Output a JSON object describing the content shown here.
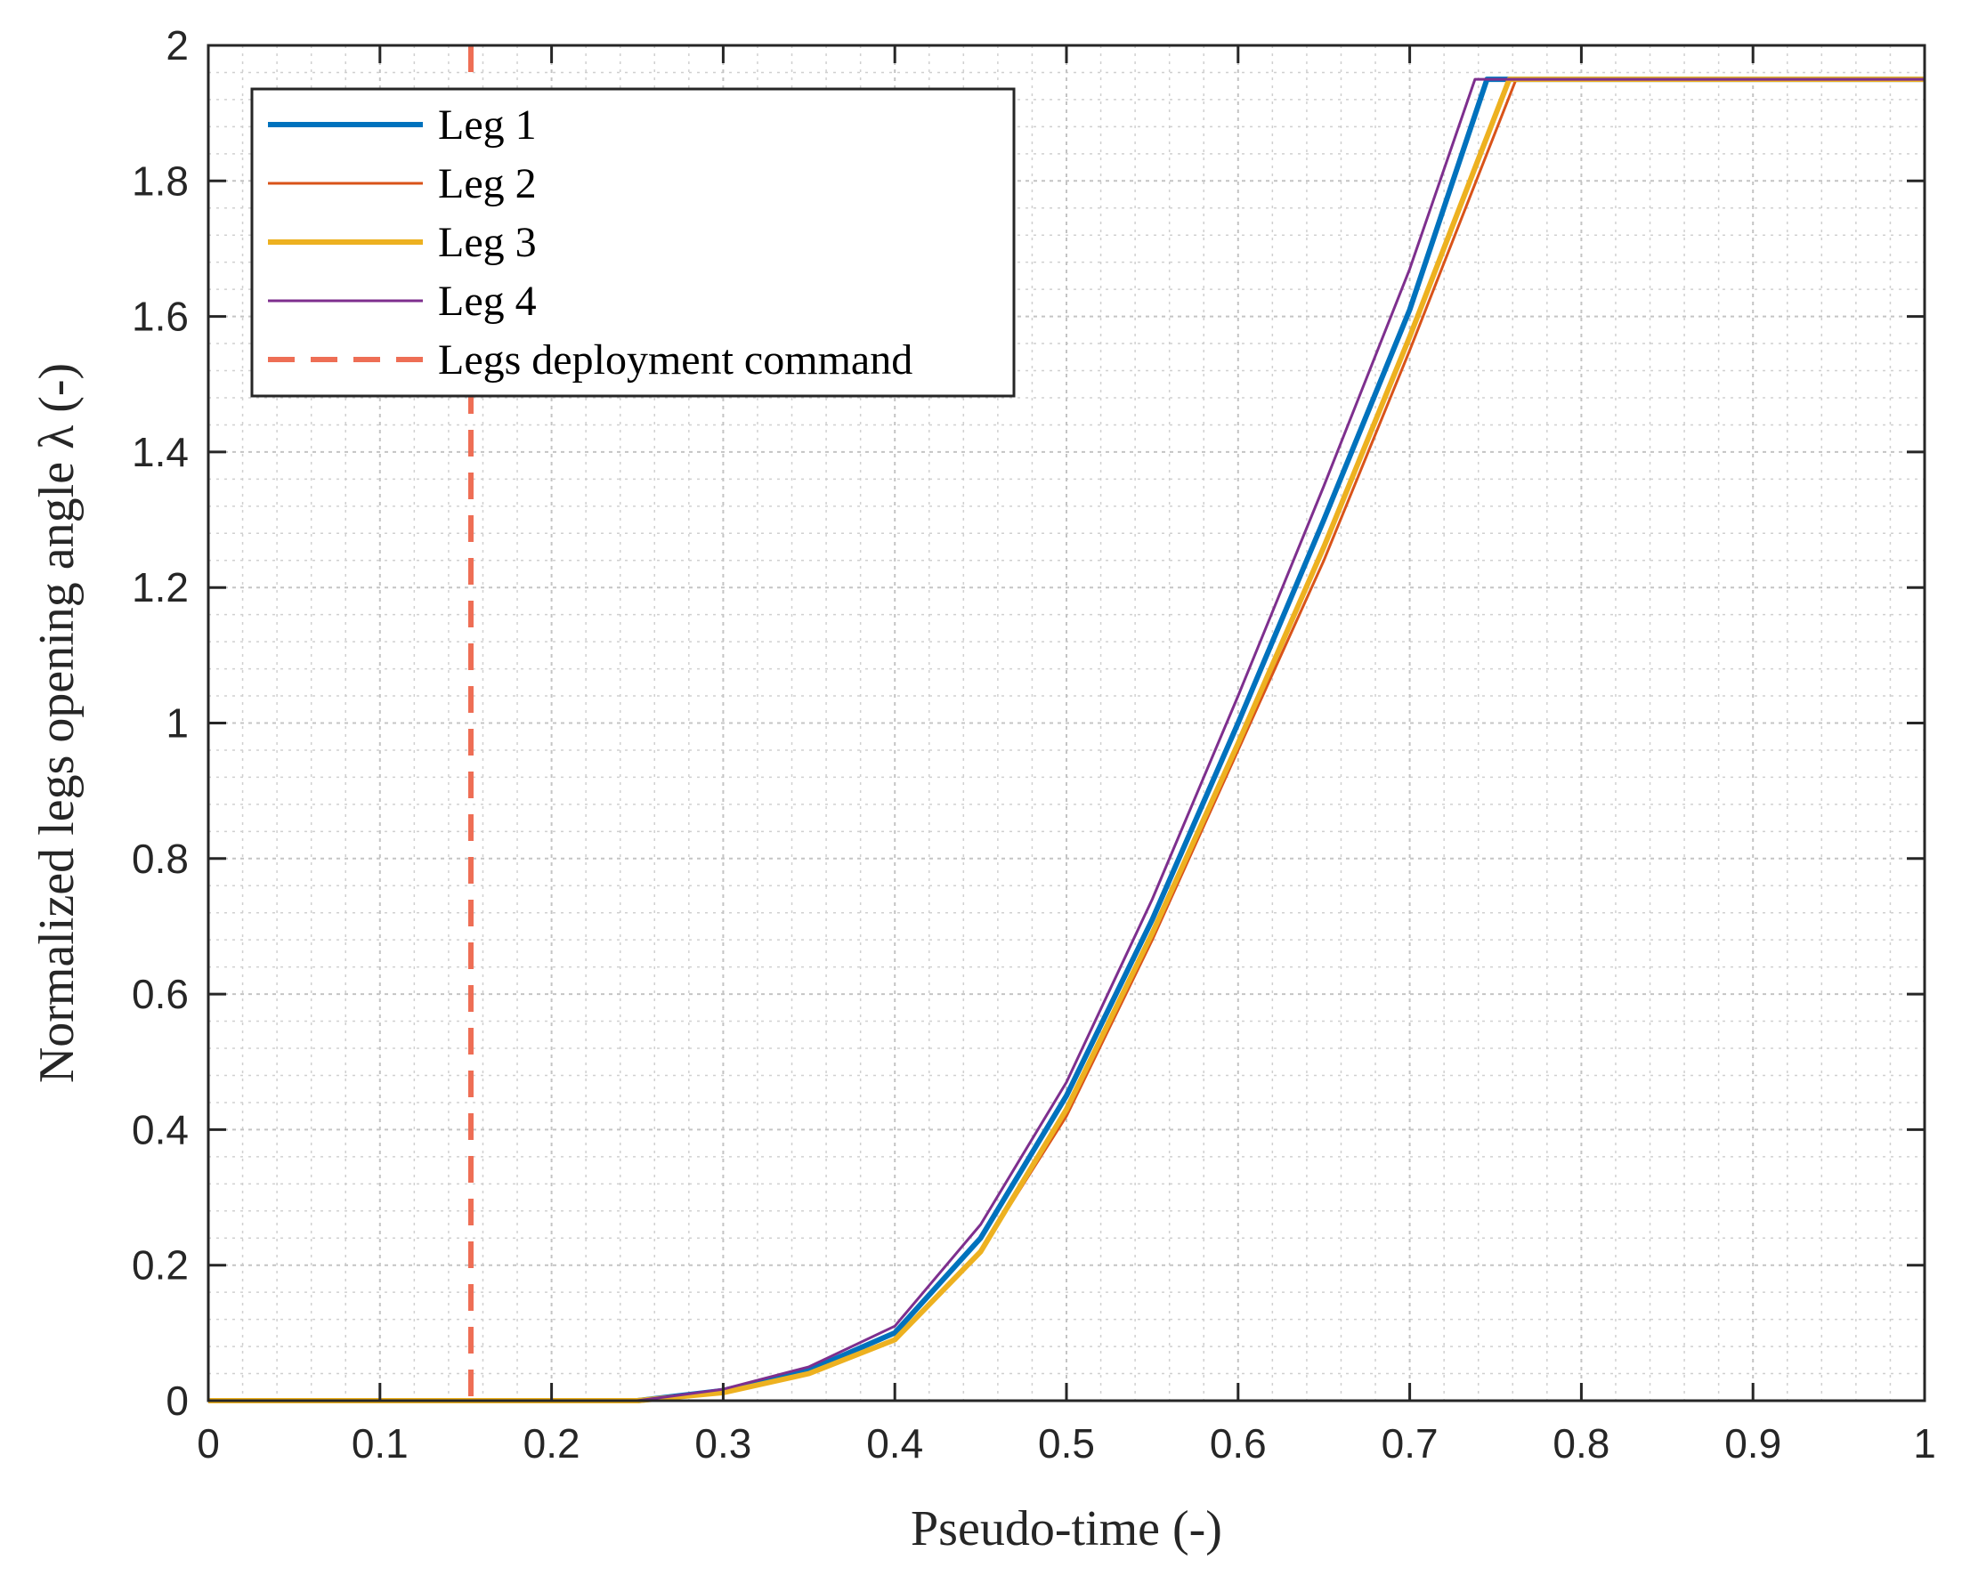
{
  "chart_data": {
    "type": "line",
    "xlabel": "Pseudo-time (-)",
    "ylabel": "Normalized legs opening angle λ (-)",
    "xlim": [
      0,
      1
    ],
    "ylim": [
      0,
      2
    ],
    "x_ticks": [
      0,
      0.1,
      0.2,
      0.3,
      0.4,
      0.5,
      0.6,
      0.7,
      0.8,
      0.9,
      1
    ],
    "x_tick_labels": [
      "0",
      "0.1",
      "0.2",
      "0.3",
      "0.4",
      "0.5",
      "0.6",
      "0.7",
      "0.8",
      "0.9",
      "1"
    ],
    "y_ticks": [
      0,
      0.2,
      0.4,
      0.6,
      0.8,
      1,
      1.2,
      1.4,
      1.6,
      1.8,
      2
    ],
    "y_tick_labels": [
      "0",
      "0.2",
      "0.4",
      "0.6",
      "0.8",
      "1",
      "1.2",
      "1.4",
      "1.6",
      "1.8",
      "2"
    ],
    "grid": true,
    "minor_grid": true,
    "legend_position": "top-left",
    "series": [
      {
        "name": "Leg 1",
        "color": "#0072BD",
        "style": "solid-thick",
        "x": [
          0,
          0.25,
          0.3,
          0.35,
          0.4,
          0.45,
          0.5,
          0.55,
          0.6,
          0.65,
          0.7,
          0.745,
          0.76,
          1
        ],
        "y": [
          0,
          0,
          0.015,
          0.045,
          0.1,
          0.24,
          0.45,
          0.71,
          1.0,
          1.3,
          1.61,
          1.95,
          1.95,
          1.95
        ]
      },
      {
        "name": "Leg 2",
        "color": "#D95319",
        "style": "solid-thin",
        "x": [
          0,
          0.25,
          0.3,
          0.35,
          0.4,
          0.45,
          0.5,
          0.55,
          0.6,
          0.65,
          0.7,
          0.762,
          0.77,
          1
        ],
        "y": [
          0,
          0,
          0.012,
          0.04,
          0.09,
          0.22,
          0.42,
          0.68,
          0.96,
          1.24,
          1.55,
          1.95,
          1.95,
          1.95
        ]
      },
      {
        "name": "Leg 3",
        "color": "#EDB120",
        "style": "solid-thick",
        "x": [
          0,
          0.25,
          0.3,
          0.35,
          0.4,
          0.45,
          0.5,
          0.55,
          0.6,
          0.65,
          0.7,
          0.758,
          0.77,
          1
        ],
        "y": [
          0,
          0,
          0.012,
          0.04,
          0.09,
          0.22,
          0.43,
          0.69,
          0.97,
          1.26,
          1.57,
          1.95,
          1.95,
          1.95
        ]
      },
      {
        "name": "Leg 4",
        "color": "#7E2F8E",
        "style": "solid-thin",
        "x": [
          0,
          0.25,
          0.3,
          0.35,
          0.4,
          0.45,
          0.5,
          0.55,
          0.6,
          0.65,
          0.7,
          0.738,
          0.76,
          1
        ],
        "y": [
          0,
          0,
          0.017,
          0.05,
          0.11,
          0.26,
          0.47,
          0.74,
          1.04,
          1.35,
          1.67,
          1.95,
          1.95,
          1.95
        ]
      }
    ],
    "reference_lines": [
      {
        "name": "Legs deployment command",
        "orientation": "vertical",
        "x": 0.153,
        "color": "#EE6E55",
        "style": "dashed"
      }
    ]
  }
}
